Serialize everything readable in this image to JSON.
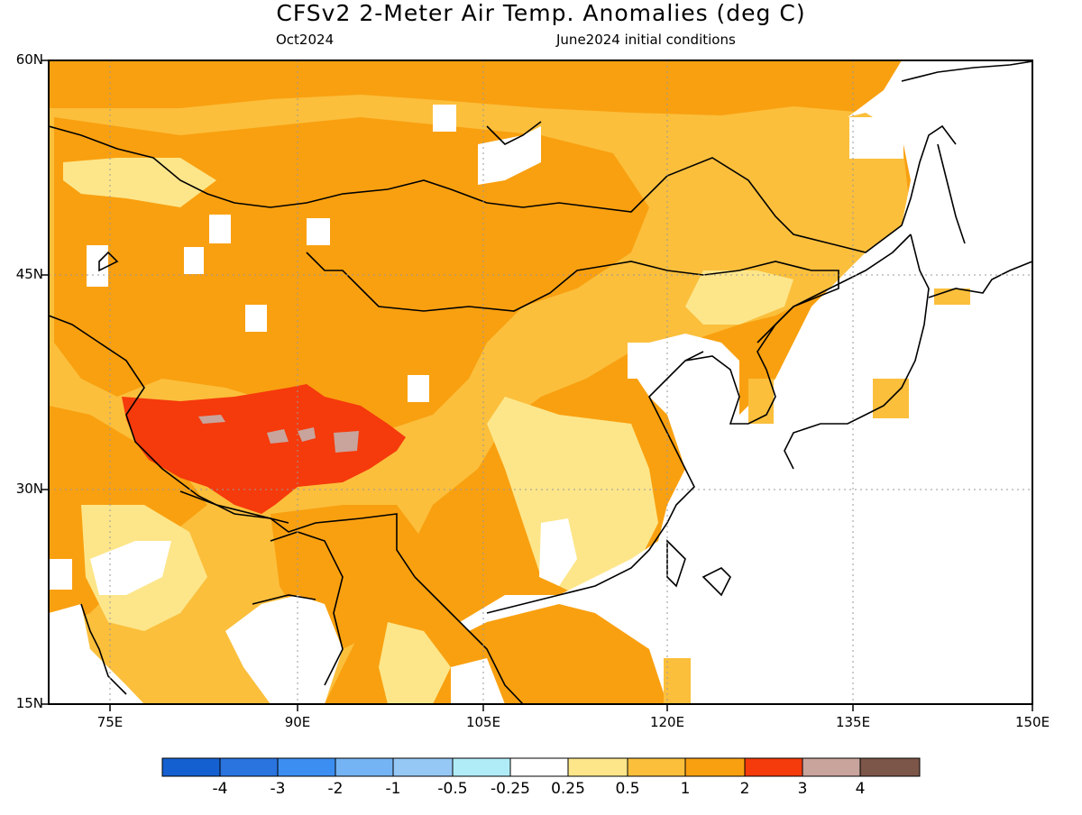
{
  "header": {
    "title": "CFSv2 2-Meter Air Temp. Anomalies (deg C)",
    "valid_month": "Oct2024",
    "init_conditions": "June2024 initial conditions"
  },
  "axes": {
    "lat_labels": [
      "60N",
      "45N",
      "30N",
      "15N"
    ],
    "lon_labels": [
      "75E",
      "90E",
      "105E",
      "120E",
      "135E",
      "150E"
    ],
    "lat_range": [
      15,
      60
    ],
    "lon_range": [
      70,
      150
    ]
  },
  "colorbar": {
    "labels": [
      "-4",
      "-3",
      "-2",
      "-1",
      "-0.5",
      "-0.25",
      "0.25",
      "0.5",
      "1",
      "2",
      "3",
      "4"
    ],
    "colors": [
      "#1560d0",
      "#2a74e0",
      "#3c8ef0",
      "#74b4f4",
      "#96c8f6",
      "#b0ecf8",
      "#ffffff",
      "#fde68a",
      "#fbbf3c",
      "#f9a010",
      "#f53a0c",
      "#c8a49c",
      "#7c5648"
    ]
  },
  "map_colors": {
    "anom_0_25_0_5": "#fde68a",
    "anom_0_5_1": "#fbbf3c",
    "anom_1_2": "#f9a010",
    "anom_2_3": "#f53a0c",
    "anom_3_4": "#c8a49c",
    "land_outline": "#000000",
    "grid": "#999999"
  }
}
